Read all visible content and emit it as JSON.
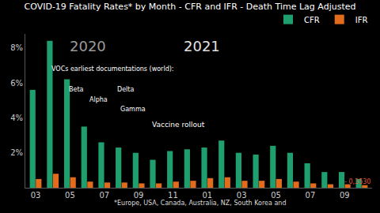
{
  "chart_data": {
    "type": "bar",
    "title": "COVID-19 Fatality Rates* by Month - CFR and IFR - Death Time Lag Adjusted",
    "categories": [
      "03",
      null,
      "05",
      null,
      "07",
      null,
      "09",
      null,
      "11",
      null,
      "01",
      null,
      "03",
      null,
      "05",
      null,
      "07",
      null,
      "09",
      null
    ],
    "series": [
      {
        "name": "CFR",
        "color": "#1f9e6e",
        "values": [
          5.6,
          8.4,
          6.2,
          3.5,
          2.6,
          2.3,
          2.0,
          1.6,
          2.1,
          2.2,
          2.3,
          2.7,
          2.0,
          1.9,
          2.4,
          2.0,
          1.4,
          0.9,
          0.9,
          0.5
        ]
      },
      {
        "name": "IFR",
        "color": "#e36b1c",
        "values": [
          0.5,
          0.8,
          0.6,
          0.35,
          0.3,
          0.3,
          0.25,
          0.25,
          0.35,
          0.4,
          0.55,
          0.6,
          0.4,
          0.4,
          0.5,
          0.35,
          0.25,
          0.2,
          0.2,
          0.15
        ]
      }
    ],
    "ylim": [
      0,
      8.8
    ],
    "yticks": [
      {
        "value": 2,
        "label": "2%"
      },
      {
        "value": 4,
        "label": "4%"
      },
      {
        "value": 6,
        "label": "6%"
      },
      {
        "value": 8,
        "label": "8%"
      }
    ],
    "grid": false,
    "legend": "top right",
    "annotations": [
      "2020",
      "2021",
      "VOCs earliest documentations (world):",
      "Beta",
      "Delta",
      "Alpha",
      "Gamma",
      "Vaccine rollout",
      "- 0,3530",
      "*Europe, USA, Canada, Australia, NZ, South Korea and"
    ]
  }
}
